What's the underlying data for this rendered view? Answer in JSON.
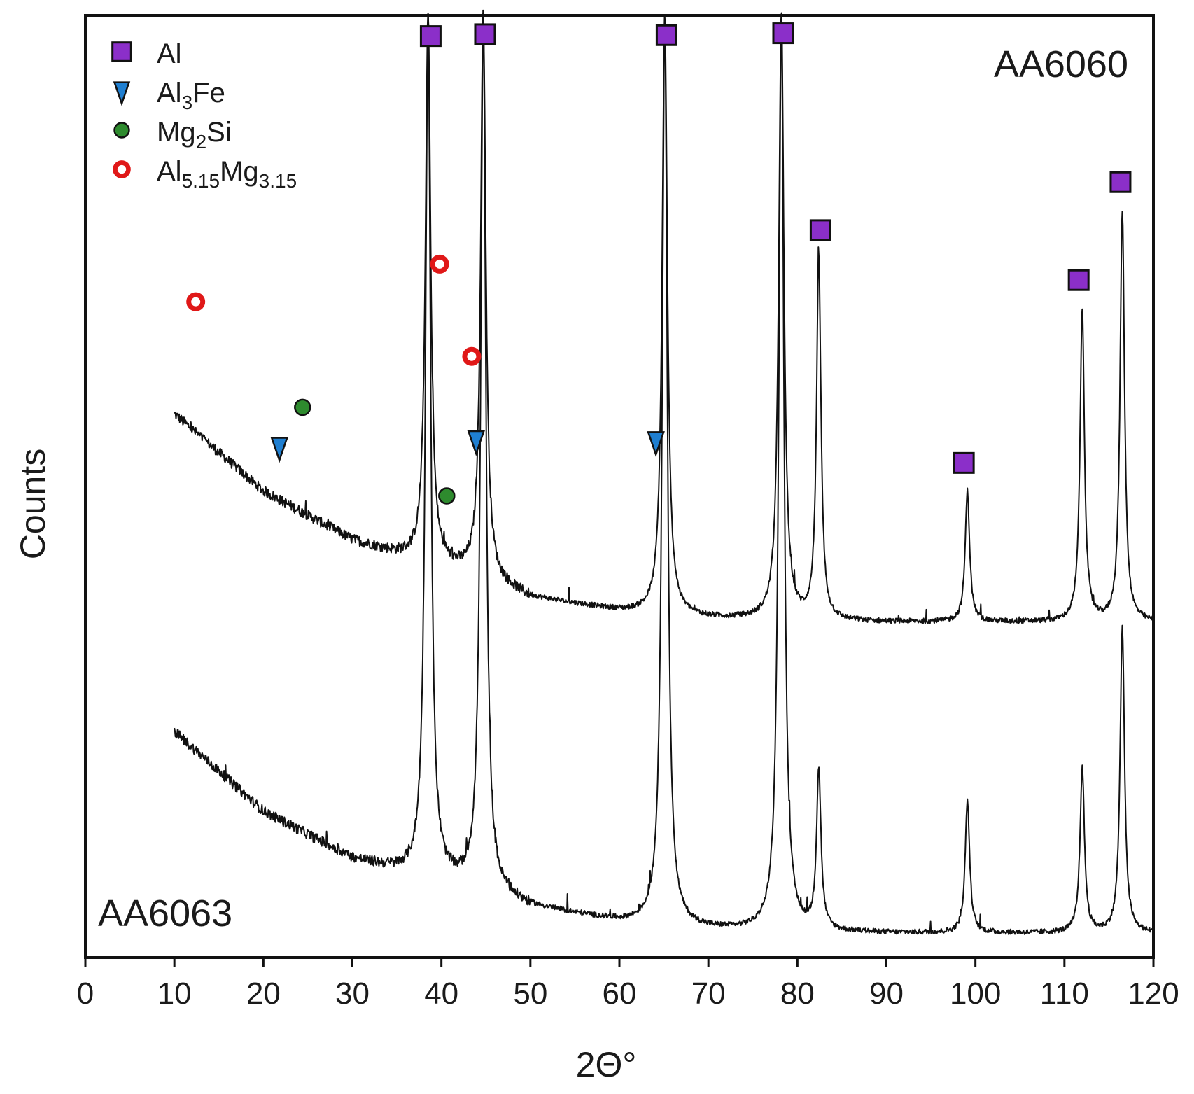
{
  "chart_data": {
    "type": "line",
    "title": "",
    "xlabel": "2Θ°",
    "ylabel": "Counts",
    "xlim": [
      0,
      120
    ],
    "ylim": [
      0,
      100
    ],
    "y_units": "arbitrary (counts, offset stacked)",
    "x_ticks": [
      "0",
      "10",
      "20",
      "30",
      "40",
      "50",
      "60",
      "70",
      "80",
      "90",
      "100",
      "110",
      "120"
    ],
    "series": [
      {
        "name": "AA6060",
        "x_range": [
          10,
          120
        ],
        "baseline": [
          [
            10,
            57.7
          ],
          [
            20,
            49.5
          ],
          [
            30,
            44.3
          ],
          [
            35,
            42.8
          ],
          [
            40,
            41.6
          ],
          [
            44,
            40.5
          ],
          [
            50,
            38.2
          ],
          [
            60,
            36.8
          ],
          [
            70,
            36.0
          ],
          [
            80,
            35.7
          ],
          [
            90,
            35.6
          ],
          [
            100,
            35.6
          ],
          [
            120,
            35.6
          ]
        ],
        "peaks": [
          {
            "x": 38.5,
            "y": 100,
            "width": 0.35
          },
          {
            "x": 44.7,
            "y": 100,
            "width": 0.35
          },
          {
            "x": 65.1,
            "y": 100,
            "width": 0.35
          },
          {
            "x": 78.2,
            "y": 100,
            "width": 0.35
          },
          {
            "x": 82.4,
            "y": 74.1,
            "width": 0.3
          },
          {
            "x": 99.1,
            "y": 49.5,
            "width": 0.3
          },
          {
            "x": 112.0,
            "y": 68.7,
            "width": 0.3
          },
          {
            "x": 116.5,
            "y": 79.2,
            "width": 0.3
          }
        ]
      },
      {
        "name": "AA6063",
        "x_range": [
          10,
          120
        ],
        "baseline": [
          [
            10,
            24.0
          ],
          [
            20,
            15.5
          ],
          [
            30,
            10.5
          ],
          [
            35,
            9.2
          ],
          [
            40,
            8.2
          ],
          [
            45,
            7.0
          ],
          [
            50,
            5.4
          ],
          [
            60,
            3.8
          ],
          [
            70,
            3.0
          ],
          [
            80,
            2.7
          ],
          [
            90,
            2.6
          ],
          [
            100,
            2.6
          ],
          [
            120,
            2.6
          ]
        ],
        "peaks": [
          {
            "x": 38.5,
            "y": 100,
            "width": 0.35
          },
          {
            "x": 44.7,
            "y": 100,
            "width": 0.35
          },
          {
            "x": 65.1,
            "y": 100,
            "width": 0.35
          },
          {
            "x": 78.2,
            "y": 100,
            "width": 0.35
          },
          {
            "x": 82.4,
            "y": 19.6,
            "width": 0.3
          },
          {
            "x": 99.1,
            "y": 16.7,
            "width": 0.3
          },
          {
            "x": 112.0,
            "y": 20.0,
            "width": 0.3
          },
          {
            "x": 116.5,
            "y": 34.9,
            "width": 0.3
          }
        ]
      }
    ],
    "markers": [
      {
        "phase": "Al",
        "shape": "square",
        "points": [
          [
            38.8,
            97.8
          ],
          [
            44.9,
            98.0
          ],
          [
            65.3,
            97.9
          ],
          [
            78.4,
            98.1
          ],
          [
            82.6,
            77.2
          ],
          [
            98.7,
            52.5
          ],
          [
            111.6,
            71.9
          ],
          [
            116.3,
            82.3
          ]
        ]
      },
      {
        "phase": "Al3Fe",
        "shape": "triangle-down",
        "points": [
          [
            21.8,
            54.2
          ],
          [
            43.9,
            54.9
          ],
          [
            64.1,
            54.8
          ]
        ]
      },
      {
        "phase": "Mg2Si",
        "shape": "circle",
        "points": [
          [
            24.4,
            58.4
          ],
          [
            40.6,
            49.0
          ]
        ]
      },
      {
        "phase": "Al5.15Mg3.15",
        "shape": "ring",
        "points": [
          [
            12.4,
            69.6
          ],
          [
            39.8,
            73.6
          ],
          [
            43.4,
            63.8
          ]
        ]
      }
    ],
    "legend": {
      "position": "top-left",
      "items": [
        {
          "key": "Al",
          "base": "Al",
          "sub": "",
          "base2": "",
          "sub2": "",
          "shape": "square"
        },
        {
          "key": "Al3Fe",
          "base": "Al",
          "sub": "3",
          "base2": "Fe",
          "sub2": "",
          "shape": "triangle-down"
        },
        {
          "key": "Mg2Si",
          "base": "Mg",
          "sub": "2",
          "base2": "Si",
          "sub2": "",
          "shape": "circle"
        },
        {
          "key": "Al5.15Mg3.15",
          "base": "Al",
          "sub": "5.15",
          "base2": "Mg",
          "sub2": "3.15",
          "shape": "ring"
        }
      ]
    },
    "annotations": [
      {
        "text": "AA6060",
        "position": "top-right"
      },
      {
        "text": "AA6063",
        "position": "bottom-left"
      }
    ],
    "colors": {
      "line": "#111111",
      "axis": "#111111",
      "al": "#8b2fc9",
      "al3fe": "#1f7fd1",
      "mg2si": "#2e8b2e",
      "al5mg3": "#e01818"
    }
  }
}
